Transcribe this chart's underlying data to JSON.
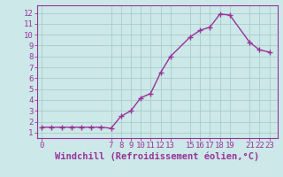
{
  "x": [
    0,
    1,
    2,
    3,
    4,
    5,
    6,
    7,
    8,
    9,
    10,
    11,
    12,
    13,
    15,
    16,
    17,
    18,
    19,
    21,
    22,
    23
  ],
  "y": [
    1.5,
    1.5,
    1.5,
    1.5,
    1.5,
    1.5,
    1.5,
    1.4,
    2.5,
    3.0,
    4.2,
    4.6,
    6.5,
    8.0,
    9.8,
    10.4,
    10.7,
    11.9,
    11.8,
    9.3,
    8.6,
    8.4
  ],
  "x_ticks": [
    0,
    7,
    8,
    9,
    10,
    11,
    12,
    13,
    15,
    16,
    17,
    18,
    19,
    21,
    22,
    23
  ],
  "x_tick_labels": [
    "0",
    "7",
    "8",
    "9",
    "10",
    "11",
    "12",
    "13",
    "15",
    "16",
    "17",
    "18",
    "19",
    "21",
    "22",
    "23"
  ],
  "y_ticks": [
    1,
    2,
    3,
    4,
    5,
    6,
    7,
    8,
    9,
    10,
    11,
    12
  ],
  "ylim": [
    0.5,
    12.7
  ],
  "xlim": [
    -0.5,
    23.8
  ],
  "line_color": "#993399",
  "marker": "+",
  "marker_size": 4,
  "bg_color": "#cce8e8",
  "grid_color": "#aacccc",
  "xlabel": "Windchill (Refroidissement éolien,°C)",
  "xlabel_color": "#993399",
  "xlabel_fontsize": 7.5,
  "tick_color": "#993399",
  "tick_fontsize": 6.5,
  "axis_color": "#993399",
  "linewidth": 1.0,
  "marker_color": "#993399"
}
